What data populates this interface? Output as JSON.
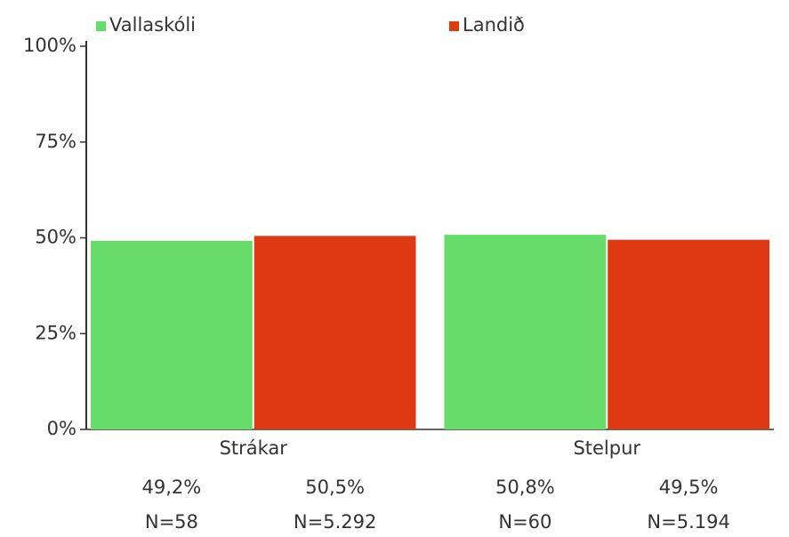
{
  "chart_data": {
    "type": "bar",
    "categories": [
      "Strákar",
      "Stelpur"
    ],
    "series": [
      {
        "name": "Vallaskóli",
        "color": "#66dd6a",
        "values": [
          49.2,
          50.8
        ],
        "value_labels": [
          "49,2%",
          "50,8%"
        ],
        "n_labels": [
          "N=58",
          "N=60"
        ]
      },
      {
        "name": "Landið",
        "color": "#dd3a14",
        "values": [
          50.5,
          49.5
        ],
        "value_labels": [
          "50,5%",
          "49,5%"
        ],
        "n_labels": [
          "N=5.292",
          "N=5.194"
        ]
      }
    ],
    "ylim": [
      0,
      100
    ],
    "yticks": [
      {
        "value": 0,
        "label": "0%"
      },
      {
        "value": 25,
        "label": "25%"
      },
      {
        "value": 50,
        "label": "50%"
      },
      {
        "value": 75,
        "label": "75%"
      },
      {
        "value": 100,
        "label": "100%"
      }
    ],
    "grid": false,
    "legend": "top"
  }
}
